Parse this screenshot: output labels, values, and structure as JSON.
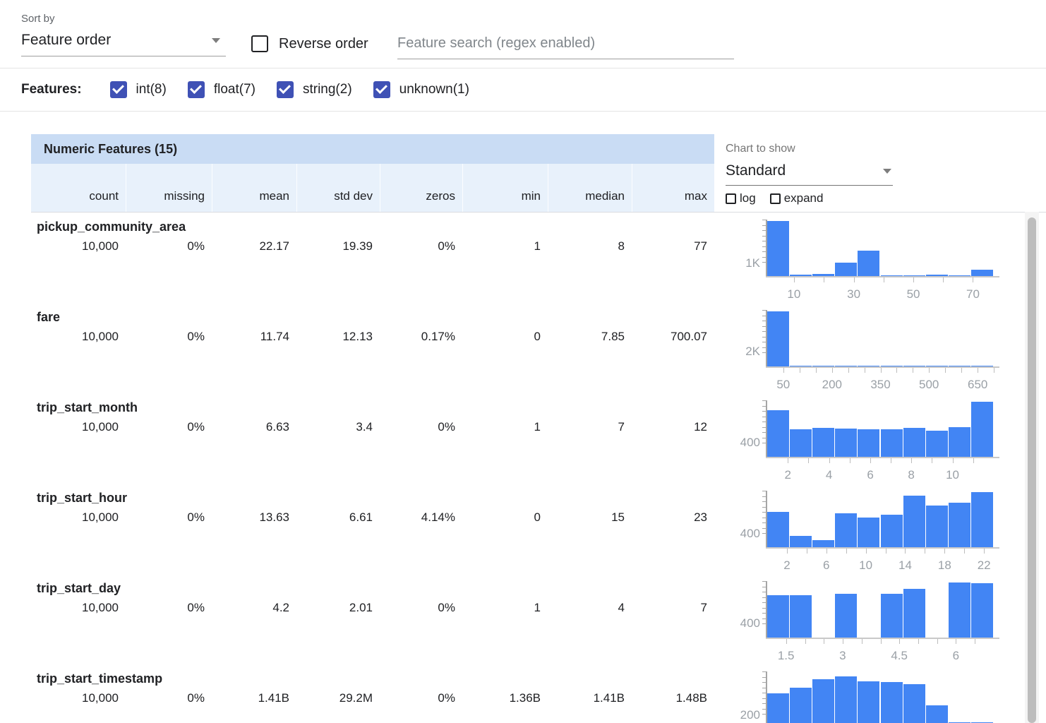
{
  "toolbar": {
    "sort_by_label": "Sort by",
    "sort_by_value": "Feature order",
    "reverse_order_label": "Reverse order",
    "search_placeholder": "Feature search (regex enabled)"
  },
  "filters": {
    "label": "Features:",
    "items": [
      {
        "label": "int(8)",
        "checked": true
      },
      {
        "label": "float(7)",
        "checked": true
      },
      {
        "label": "string(2)",
        "checked": true
      },
      {
        "label": "unknown(1)",
        "checked": true
      }
    ]
  },
  "chart_panel": {
    "label": "Chart to show",
    "value": "Standard",
    "log_label": "log",
    "expand_label": "expand"
  },
  "table": {
    "title": "Numeric Features (15)",
    "columns": [
      "count",
      "missing",
      "mean",
      "std dev",
      "zeros",
      "min",
      "median",
      "max"
    ],
    "rows": [
      {
        "name": "pickup_community_area",
        "stats": [
          "10,000",
          "0%",
          "22.17",
          "19.39",
          "0%",
          "1",
          "8",
          "77"
        ]
      },
      {
        "name": "fare",
        "stats": [
          "10,000",
          "0%",
          "11.74",
          "12.13",
          "0.17%",
          "0",
          "7.85",
          "700.07"
        ]
      },
      {
        "name": "trip_start_month",
        "stats": [
          "10,000",
          "0%",
          "6.63",
          "3.4",
          "0%",
          "1",
          "7",
          "12"
        ]
      },
      {
        "name": "trip_start_hour",
        "stats": [
          "10,000",
          "0%",
          "13.63",
          "6.61",
          "4.14%",
          "0",
          "15",
          "23"
        ]
      },
      {
        "name": "trip_start_day",
        "stats": [
          "10,000",
          "0%",
          "4.2",
          "2.01",
          "0%",
          "1",
          "4",
          "7"
        ]
      },
      {
        "name": "trip_start_timestamp",
        "stats": [
          "10,000",
          "0%",
          "1.41B",
          "29.2M",
          "0%",
          "1.36B",
          "1.41B",
          "1.48B"
        ]
      }
    ]
  },
  "chart_data": [
    {
      "type": "bar",
      "feature": "pickup_community_area",
      "x_domain": [
        1,
        77
      ],
      "bins": [
        4600,
        90,
        180,
        1100,
        2150,
        20,
        20,
        130,
        20,
        540
      ],
      "y_gridline": {
        "label": "1K",
        "value": 1000,
        "axis_max": 4600
      },
      "x_labels": [
        {
          "t": "10",
          "f": 0.118
        },
        {
          "t": "30",
          "f": 0.382
        },
        {
          "t": "50",
          "f": 0.645
        },
        {
          "t": "70",
          "f": 0.908
        }
      ],
      "x_minor": [
        0.118,
        0.25,
        0.382,
        0.513,
        0.645,
        0.776,
        0.908
      ]
    },
    {
      "type": "bar",
      "feature": "fare",
      "x_domain": [
        0,
        700.07
      ],
      "bins": [
        8000,
        90,
        40,
        25,
        15,
        10,
        8,
        6,
        4,
        3
      ],
      "y_gridline": {
        "label": "2K",
        "value": 2000,
        "axis_max": 8000
      },
      "x_labels": [
        {
          "t": "50",
          "f": 0.071
        },
        {
          "t": "200",
          "f": 0.286
        },
        {
          "t": "350",
          "f": 0.5
        },
        {
          "t": "500",
          "f": 0.714
        },
        {
          "t": "650",
          "f": 0.929
        }
      ],
      "x_minor": [
        0.071,
        0.143,
        0.214,
        0.286,
        0.357,
        0.429,
        0.5,
        0.571,
        0.643,
        0.714,
        0.786,
        0.857,
        0.929,
        0.999
      ]
    },
    {
      "type": "bar",
      "feature": "trip_start_month",
      "x_domain": [
        1,
        12
      ],
      "bins": [
        1430,
        840,
        875,
        855,
        840,
        840,
        875,
        805,
        905,
        1680
      ],
      "y_gridline": {
        "label": "400",
        "value": 400,
        "axis_max": 1680
      },
      "x_labels": [
        {
          "t": "2",
          "f": 0.091
        },
        {
          "t": "4",
          "f": 0.273
        },
        {
          "t": "6",
          "f": 0.455
        },
        {
          "t": "8",
          "f": 0.636
        },
        {
          "t": "10",
          "f": 0.818
        }
      ],
      "x_minor": [
        0.091,
        0.182,
        0.273,
        0.364,
        0.455,
        0.545,
        0.636,
        0.727,
        0.818,
        0.909
      ]
    },
    {
      "type": "bar",
      "feature": "trip_start_hour",
      "x_domain": [
        0,
        23
      ],
      "bins": [
        1120,
        370,
        215,
        1085,
        945,
        1035,
        1630,
        1330,
        1420,
        1750
      ],
      "y_gridline": {
        "label": "400",
        "value": 400,
        "axis_max": 1750
      },
      "x_labels": [
        {
          "t": "2",
          "f": 0.087
        },
        {
          "t": "6",
          "f": 0.261
        },
        {
          "t": "10",
          "f": 0.435
        },
        {
          "t": "14",
          "f": 0.609
        },
        {
          "t": "18",
          "f": 0.783
        },
        {
          "t": "22",
          "f": 0.957
        }
      ],
      "x_minor": [
        0.087,
        0.174,
        0.261,
        0.348,
        0.435,
        0.522,
        0.609,
        0.696,
        0.783,
        0.87,
        0.957
      ]
    },
    {
      "type": "bar",
      "feature": "trip_start_day",
      "x_domain": [
        1,
        7
      ],
      "bins": [
        1270,
        1270,
        0,
        1320,
        0,
        1320,
        1465,
        0,
        1650,
        1630
      ],
      "y_gridline": {
        "label": "400",
        "value": 400,
        "axis_max": 1650
      },
      "x_labels": [
        {
          "t": "1.5",
          "f": 0.083
        },
        {
          "t": "3",
          "f": 0.333
        },
        {
          "t": "4.5",
          "f": 0.583
        },
        {
          "t": "6",
          "f": 0.833
        }
      ],
      "x_minor": [
        0.083,
        0.167,
        0.25,
        0.333,
        0.417,
        0.5,
        0.583,
        0.667,
        0.75,
        0.833,
        0.917
      ]
    },
    {
      "type": "bar",
      "feature": "trip_start_timestamp",
      "x_domain": [
        1360000000,
        1480000000
      ],
      "bins": [
        580,
        680,
        820,
        870,
        790,
        775,
        735,
        380,
        95,
        100
      ],
      "y_gridline": {
        "label": "200",
        "value": 200,
        "axis_max": 930
      },
      "x_labels": [],
      "x_minor": []
    }
  ],
  "colors": {
    "bar_blue": "#4285f4",
    "checkbox_indigo": "#3f51b5",
    "header_band": "#c9dcf4",
    "subheader_band": "#e8f1fb"
  }
}
